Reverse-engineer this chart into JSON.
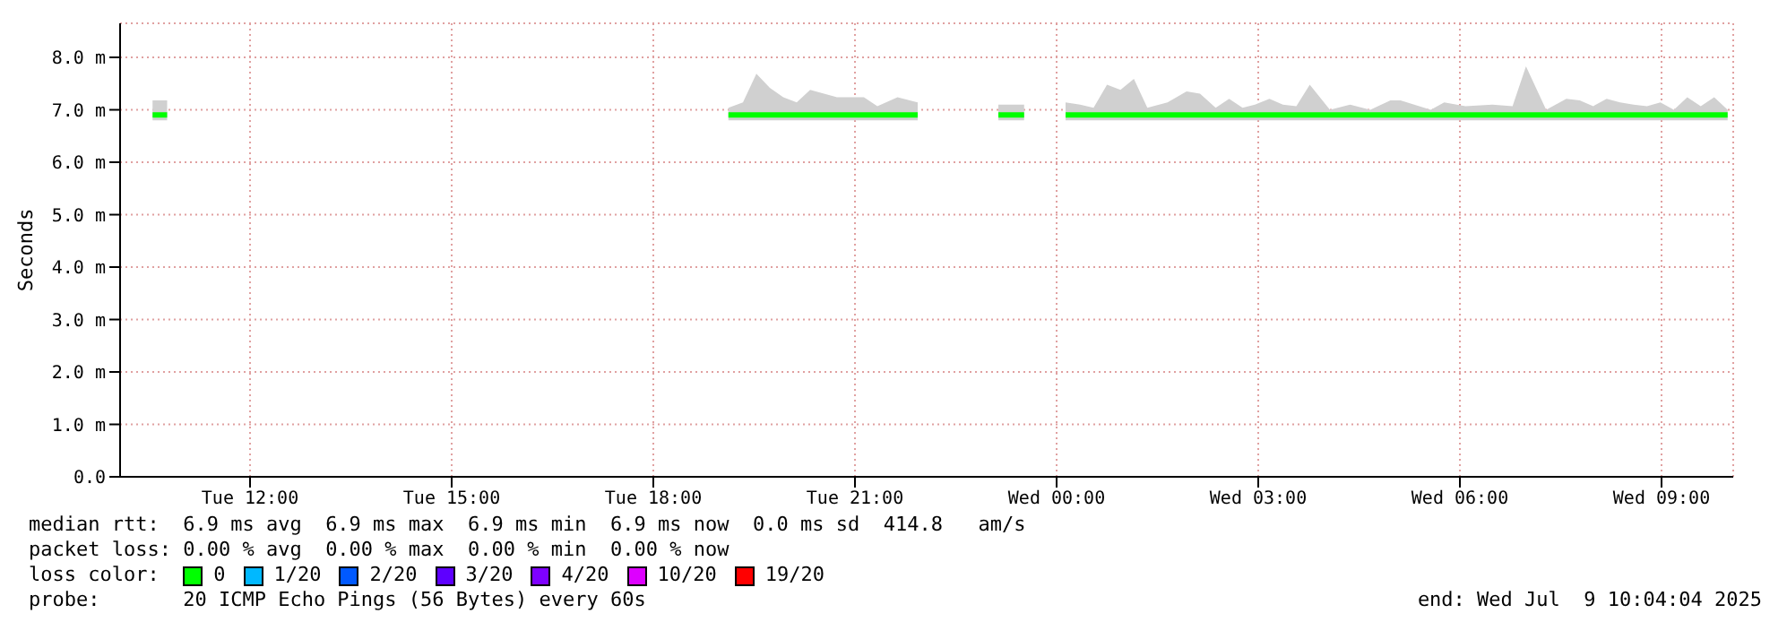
{
  "chart_data": {
    "type": "line",
    "ylabel": "Seconds",
    "legend_title": "loss color:",
    "legend": "bottom",
    "grid": true,
    "marker": "none",
    "line_style": "solid",
    "xlim": [
      "2025-07-08T10:04",
      "2025-07-09T10:04"
    ],
    "xticks": [
      {
        "value": "2025-07-08T12:00",
        "label": "Tue 12:00"
      },
      {
        "value": "2025-07-08T15:00",
        "label": "Tue 15:00"
      },
      {
        "value": "2025-07-08T18:00",
        "label": "Tue 18:00"
      },
      {
        "value": "2025-07-08T21:00",
        "label": "Tue 21:00"
      },
      {
        "value": "2025-07-09T00:00",
        "label": "Wed 00:00"
      },
      {
        "value": "2025-07-09T03:00",
        "label": "Wed 03:00"
      },
      {
        "value": "2025-07-09T06:00",
        "label": "Wed 06:00"
      },
      {
        "value": "2025-07-09T09:00",
        "label": "Wed 09:00"
      }
    ],
    "ylim": [
      0,
      8.65
    ],
    "yticks": [
      {
        "value": 0,
        "label": "0.0"
      },
      {
        "value": 1,
        "label": "1.0 m"
      },
      {
        "value": 2,
        "label": "2.0 m"
      },
      {
        "value": 3,
        "label": "3.0 m"
      },
      {
        "value": 4,
        "label": "4.0 m"
      },
      {
        "value": 5,
        "label": "5.0 m"
      },
      {
        "value": 6,
        "label": "6.0 m"
      },
      {
        "value": 7,
        "label": "7.0 m"
      },
      {
        "value": 8,
        "label": "8.0 m"
      }
    ],
    "series": [
      {
        "name": "0",
        "color": "#00ff00",
        "x": [
          "2025-07-08T10:33",
          "2025-07-08T10:46",
          "2025-07-08T15:00",
          "2025-07-08T19:07",
          "2025-07-08T19:20",
          "2025-07-08T19:32",
          "2025-07-08T19:44",
          "2025-07-08T19:56",
          "2025-07-08T20:08",
          "2025-07-08T20:20",
          "2025-07-08T20:44",
          "2025-07-08T21:08",
          "2025-07-08T21:20",
          "2025-07-08T21:38",
          "2025-07-08T21:56",
          "2025-07-08T22:30",
          "2025-07-08T23:08",
          "2025-07-08T23:31",
          "2025-07-08T23:48",
          "2025-07-09T00:08",
          "2025-07-09T00:21",
          "2025-07-09T00:33",
          "2025-07-09T00:45",
          "2025-07-09T00:57",
          "2025-07-09T01:09",
          "2025-07-09T01:21",
          "2025-07-09T01:39",
          "2025-07-09T01:56",
          "2025-07-09T02:08",
          "2025-07-09T02:22",
          "2025-07-09T02:34",
          "2025-07-09T02:46",
          "2025-07-09T02:57",
          "2025-07-09T03:10",
          "2025-07-09T03:22",
          "2025-07-09T03:34",
          "2025-07-09T03:46",
          "2025-07-09T04:04",
          "2025-07-09T04:22",
          "2025-07-09T04:40",
          "2025-07-09T04:58",
          "2025-07-09T05:07",
          "2025-07-09T05:34",
          "2025-07-09T05:46",
          "2025-07-09T06:05",
          "2025-07-09T06:29",
          "2025-07-09T06:47",
          "2025-07-09T06:59",
          "2025-07-09T07:17",
          "2025-07-09T07:35",
          "2025-07-09T07:47",
          "2025-07-09T07:59",
          "2025-07-09T08:11",
          "2025-07-09T08:23",
          "2025-07-09T08:35",
          "2025-07-09T08:47",
          "2025-07-09T08:59",
          "2025-07-09T09:11",
          "2025-07-09T09:23",
          "2025-07-09T09:35",
          "2025-07-09T09:47",
          "2025-07-09T09:59"
        ],
        "values": [
          6.9,
          6.9,
          null,
          6.9,
          6.9,
          6.9,
          6.9,
          6.9,
          6.9,
          6.9,
          6.9,
          6.9,
          6.9,
          6.9,
          6.9,
          null,
          6.9,
          6.9,
          null,
          6.9,
          6.9,
          6.9,
          6.9,
          6.9,
          6.9,
          6.9,
          6.9,
          6.9,
          6.9,
          6.9,
          6.9,
          6.9,
          6.9,
          6.9,
          6.9,
          6.9,
          6.9,
          6.9,
          6.9,
          6.9,
          6.9,
          6.9,
          6.9,
          6.9,
          6.9,
          6.9,
          6.9,
          6.9,
          6.9,
          6.9,
          6.9,
          6.9,
          6.9,
          6.9,
          6.9,
          6.9,
          6.9,
          6.9,
          6.9,
          6.9,
          6.9,
          6.9
        ],
        "lower": [
          6.8,
          6.8,
          null,
          6.8,
          6.8,
          6.8,
          6.8,
          6.8,
          6.8,
          6.8,
          6.8,
          6.8,
          6.8,
          6.8,
          6.8,
          null,
          6.8,
          6.8,
          null,
          6.8,
          6.8,
          6.8,
          6.8,
          6.8,
          6.8,
          6.8,
          6.8,
          6.8,
          6.8,
          6.8,
          6.8,
          6.8,
          6.8,
          6.8,
          6.8,
          6.8,
          6.8,
          6.8,
          6.8,
          6.8,
          6.8,
          6.8,
          6.8,
          6.8,
          6.8,
          6.8,
          6.8,
          6.8,
          6.8,
          6.8,
          6.8,
          6.8,
          6.8,
          6.8,
          6.8,
          6.8,
          6.8,
          6.8,
          6.8,
          6.8,
          6.8,
          6.8
        ],
        "upper": [
          7.18,
          7.18,
          null,
          7.04,
          7.14,
          7.69,
          7.42,
          7.24,
          7.14,
          7.38,
          7.24,
          7.24,
          7.07,
          7.24,
          7.14,
          null,
          7.1,
          7.1,
          null,
          7.14,
          7.1,
          7.04,
          7.48,
          7.38,
          7.59,
          7.04,
          7.14,
          7.35,
          7.31,
          7.04,
          7.21,
          7.04,
          7.1,
          7.21,
          7.1,
          7.07,
          7.48,
          7.0,
          7.1,
          7.0,
          7.18,
          7.18,
          7.0,
          7.14,
          7.07,
          7.1,
          7.07,
          7.83,
          7.0,
          7.21,
          7.18,
          7.07,
          7.21,
          7.14,
          7.1,
          7.07,
          7.14,
          7.0,
          7.24,
          7.07,
          7.24,
          7.0
        ]
      },
      {
        "name": "1/20",
        "color": "#00b8ff"
      },
      {
        "name": "2/20",
        "color": "#0059ff"
      },
      {
        "name": "3/20",
        "color": "#5e00ff"
      },
      {
        "name": "4/20",
        "color": "#7e00ff"
      },
      {
        "name": "10/20",
        "color": "#dd00ff"
      },
      {
        "name": "19/20",
        "color": "#ff0000"
      }
    ],
    "annotations": [
      "median rtt:  6.9 ms avg  6.9 ms max  6.9 ms min  6.9 ms now  0.0 ms sd  414.8   am/s",
      "packet loss: 0.00 % avg  0.00 % max  0.00 % min  0.00 % now",
      "probe:       20 ICMP Echo Pings (56 Bytes) every 60s",
      "end: Wed Jul  9 10:04:04 2025"
    ]
  }
}
